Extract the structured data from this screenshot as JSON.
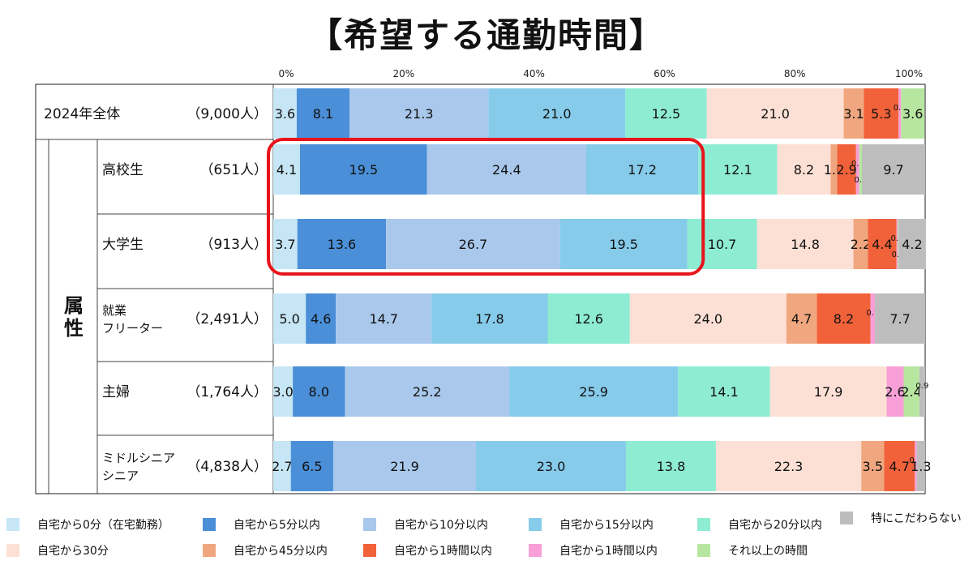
{
  "chart_data": {
    "type": "bar",
    "orientation": "horizontal-stacked-100",
    "title": "【希望する通勤時間】",
    "axis_ticks": [
      "0%",
      "20%",
      "40%",
      "60%",
      "80%",
      "100%"
    ],
    "xlim": [
      0,
      100
    ],
    "group_label": "属性",
    "rows": [
      {
        "label": "2024年全体",
        "count": "（9,000人）",
        "values": [
          3.6,
          8.1,
          21.3,
          21.0,
          12.5,
          21.0,
          3.1,
          5.3,
          0.4,
          3.6,
          0.0
        ]
      },
      {
        "label": "高校生",
        "count": "（651人）",
        "values": [
          4.1,
          19.5,
          24.4,
          17.2,
          12.1,
          8.2,
          1.0,
          2.9,
          0.5,
          0.4,
          9.7
        ]
      },
      {
        "label": "大学生",
        "count": "（913人）",
        "values": [
          3.7,
          13.6,
          26.7,
          19.5,
          10.7,
          14.8,
          2.2,
          4.4,
          0.2,
          0.1,
          4.2
        ]
      },
      {
        "label": "就業\nフリーター",
        "count": "（2,491人）",
        "values": [
          5.0,
          4.6,
          14.7,
          17.8,
          12.6,
          24.0,
          4.7,
          8.2,
          0.7,
          0.0,
          7.7
        ]
      },
      {
        "label": "主婦",
        "count": "（1,764人）",
        "values": [
          3.0,
          8.0,
          25.2,
          25.9,
          14.1,
          17.9,
          0.0,
          0.0,
          2.6,
          2.4,
          0.9
        ]
      },
      {
        "label": "ミドルシニア\nシニア",
        "count": "（4,838人）",
        "values": [
          2.7,
          6.5,
          21.9,
          23.0,
          13.8,
          22.3,
          3.5,
          4.7,
          0.3,
          0.0,
          1.3
        ]
      }
    ],
    "series": [
      {
        "name": "自宅から0分（在宅勤務）",
        "color": "#c6e6f5"
      },
      {
        "name": "自宅から5分以内",
        "color": "#4a8fd8"
      },
      {
        "name": "自宅から10分以内",
        "color": "#a9c8ec"
      },
      {
        "name": "自宅から15分以内",
        "color": "#86cbea"
      },
      {
        "name": "自宅から20分以内",
        "color": "#8eecd2"
      },
      {
        "name": "自宅から30分",
        "color": "#fde0d5"
      },
      {
        "name": "自宅から45分以内",
        "color": "#f0a77f"
      },
      {
        "name": "自宅から1時間以内",
        "color": "#f2623a"
      },
      {
        "name": "自宅から1時間以内",
        "color": "#f79fd6"
      },
      {
        "name": "それ以上の時間",
        "color": "#b7e6a0"
      },
      {
        "name": "特にこだわらない",
        "color": "#bdbdbd"
      }
    ],
    "highlight": {
      "rows": [
        1,
        2
      ],
      "series_from": 0,
      "series_to": 3,
      "color": "#e8141b"
    }
  }
}
